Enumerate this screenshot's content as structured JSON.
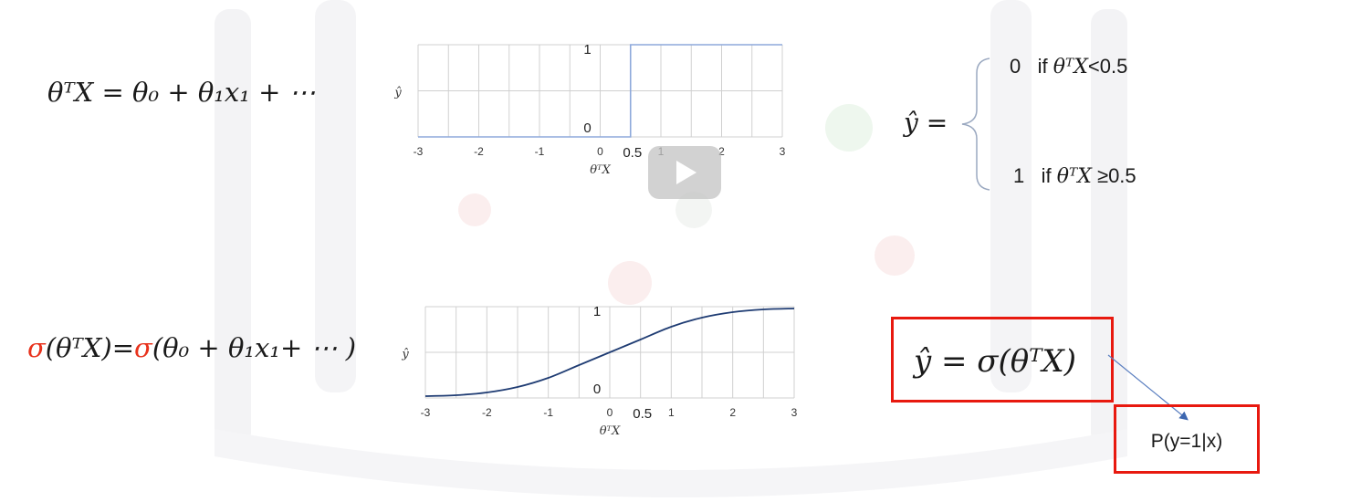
{
  "eq_linear": {
    "lhs": "θᵀX = θ₀ + θ₁x₁ + ⋯"
  },
  "eq_sigmoid": {
    "sigma1": "σ",
    "part1": "(θᵀX)=",
    "sigma2": "σ",
    "part2": "(θ₀ +  θ₁x₁+ ⋯ )"
  },
  "yhat_def": {
    "lhs": "ŷ =",
    "case0_value": "0",
    "case0_cond_text": "if",
    "case0_cond_math": "θᵀX",
    "case0_cond_tail": "<0.5",
    "case1_value": "1",
    "case1_cond_text": "if",
    "case1_cond_math": "θᵀX",
    "case1_cond_tail": "≥0.5"
  },
  "boxes": {
    "yhat_sigma": "ŷ = σ(θᵀX)",
    "probability": "P(y=1|x)"
  },
  "colors": {
    "accent_red": "#e8321c",
    "box_red": "#e8190f",
    "step_line": "#8ea9db",
    "sigmoid_line": "#1f3c73",
    "grid": "#d0d0d0"
  },
  "chart_data": [
    {
      "type": "line",
      "xlabel": "θᵀX",
      "ylabel": "ŷ",
      "xlim": [
        -3,
        3
      ],
      "ylim": [
        0,
        1
      ],
      "x_ticks": [
        "-3",
        "-2",
        "-1",
        "0",
        "1",
        "2",
        "3"
      ],
      "x_tick_values": [
        -3,
        -2,
        -1,
        0,
        1,
        2,
        3
      ],
      "extra_tick": {
        "label": "0.5",
        "value": 0.5
      },
      "y_ticks": [
        "0",
        "1"
      ],
      "y_tick_values": [
        0,
        1
      ],
      "grid": true,
      "series": [
        {
          "x": [
            -3,
            0.5,
            0.5,
            3
          ],
          "y": [
            0,
            0,
            1,
            1
          ]
        }
      ]
    },
    {
      "type": "line",
      "xlabel": "θᵀX",
      "ylabel": "ŷ",
      "xlim": [
        -3,
        3
      ],
      "ylim": [
        0,
        1
      ],
      "x_ticks": [
        "-3",
        "-2",
        "-1",
        "0",
        "1",
        "2",
        "3"
      ],
      "x_tick_values": [
        -3,
        -2,
        -1,
        0,
        1,
        2,
        3
      ],
      "extra_tick": {
        "label": "0.5",
        "value": 0.5
      },
      "y_ticks": [
        "0",
        "1"
      ],
      "y_tick_values": [
        0,
        1
      ],
      "grid": true,
      "series": [
        {
          "x": [
            -3,
            -2.5,
            -2,
            -1.5,
            -1,
            -0.5,
            0,
            0.5,
            1,
            1.5,
            2,
            2.5,
            3
          ],
          "y": [
            0.02,
            0.03,
            0.06,
            0.12,
            0.22,
            0.36,
            0.5,
            0.64,
            0.78,
            0.88,
            0.94,
            0.97,
            0.98
          ]
        }
      ]
    }
  ]
}
